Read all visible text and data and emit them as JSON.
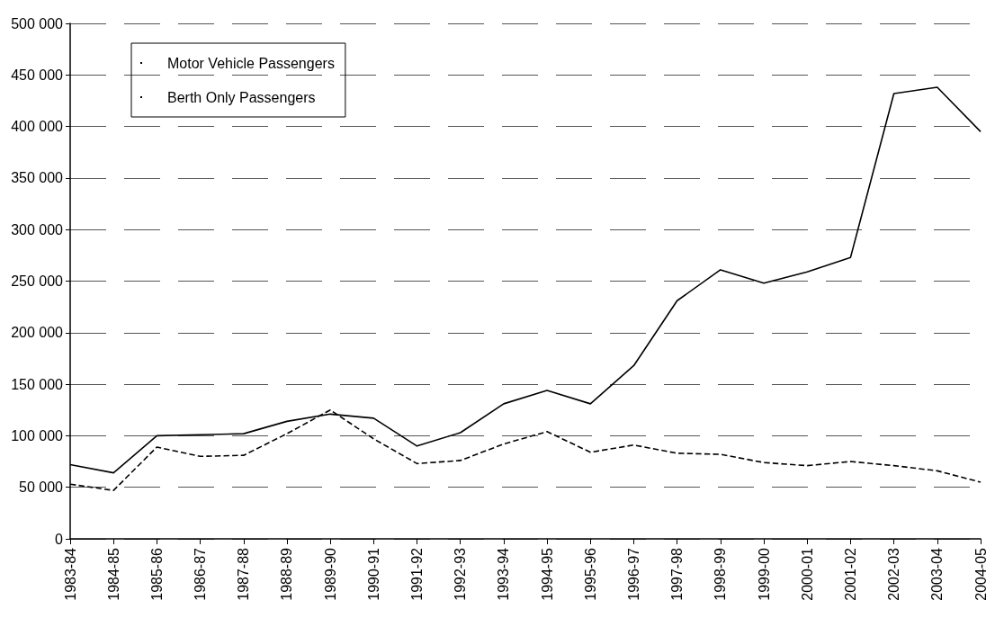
{
  "chart_data": {
    "type": "line",
    "categories": [
      "1983-84",
      "1984-85",
      "1985-86",
      "1986-87",
      "1987-88",
      "1988-89",
      "1989-90",
      "1990-91",
      "1991-92",
      "1992-93",
      "1993-94",
      "1994-95",
      "1995-96",
      "1996-97",
      "1997-98",
      "1998-99",
      "1999-00",
      "2000-01",
      "2001-02",
      "2002-03",
      "2003-04",
      "2004-05"
    ],
    "series": [
      {
        "name": "Motor Vehicle Passengers",
        "color": "#000000",
        "line_style": "solid",
        "values": [
          72000,
          64000,
          100000,
          101000,
          102000,
          114000,
          121000,
          117000,
          90000,
          103000,
          131000,
          144000,
          131000,
          168000,
          231000,
          261000,
          248000,
          259000,
          273000,
          432000,
          438000,
          395000
        ]
      },
      {
        "name": "Berth Only Passengers",
        "color": "#000000",
        "line_style": "dashed",
        "values": [
          53000,
          47000,
          89000,
          80000,
          81000,
          102000,
          125000,
          97000,
          73000,
          76000,
          92000,
          104000,
          84000,
          91000,
          83000,
          82000,
          74000,
          71000,
          75000,
          71000,
          66000,
          55000
        ]
      }
    ],
    "ylim": [
      0,
      500000
    ],
    "yticks": [
      {
        "value": 0,
        "label": "0"
      },
      {
        "value": 50000,
        "label": "50 000"
      },
      {
        "value": 100000,
        "label": "100 000"
      },
      {
        "value": 150000,
        "label": "150 000"
      },
      {
        "value": 200000,
        "label": "200 000"
      },
      {
        "value": 250000,
        "label": "250 000"
      },
      {
        "value": 300000,
        "label": "300 000"
      },
      {
        "value": 350000,
        "label": "350 000"
      },
      {
        "value": 400000,
        "label": "400 000"
      },
      {
        "value": 450000,
        "label": "450 000"
      },
      {
        "value": 500000,
        "label": "500 000"
      }
    ],
    "grid": "y",
    "legend": "top left",
    "marker": "none"
  }
}
